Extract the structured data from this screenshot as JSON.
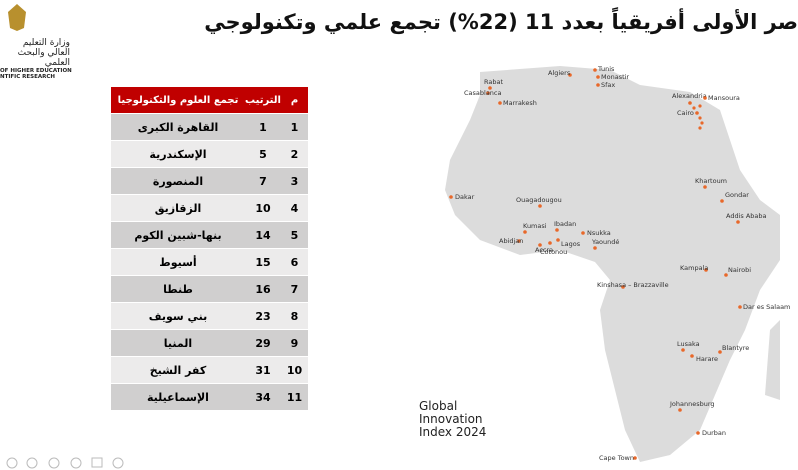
{
  "title": "صر الأولى أفريقياً بعدد 11 (22%) تجمع علمي وتكنولوجي",
  "logo": {
    "arabic": "وزارة التعليم العالي والبحث العلمي",
    "english_1": "OF HIGHER EDUCATION",
    "english_2": "NTIFIC RESEARCH"
  },
  "table": {
    "header": [
      "م",
      "الترتيب",
      "تجمع العلوم والتكنولوجيا"
    ],
    "rows": [
      [
        1,
        1,
        "القاهرة الكبرى"
      ],
      [
        2,
        5,
        "الإسكندرية"
      ],
      [
        3,
        7,
        "المنصورة"
      ],
      [
        4,
        10,
        "الزقازيق"
      ],
      [
        5,
        14,
        "بنها-شبين الكوم"
      ],
      [
        6,
        15,
        "أسيوط"
      ],
      [
        7,
        16,
        "طنطا"
      ],
      [
        8,
        23,
        "بني سويف"
      ],
      [
        9,
        29,
        "المنيا"
      ],
      [
        10,
        31,
        "كفر الشيخ"
      ],
      [
        11,
        34,
        "الإسماعيلية"
      ]
    ]
  },
  "map": {
    "source": "Global\nInnovation\nIndex 2024",
    "cities": [
      "Tunis",
      "Algiers",
      "Monastir",
      "Sfax",
      "Rabat",
      "Casablanca",
      "Marrakesh",
      "Alexandria",
      "Mansoura",
      "Cairo",
      "Khartoum",
      "Gondar",
      "Addis Ababa",
      "Dakar",
      "Ouagadougou",
      "Kumasi",
      "Abidjan",
      "Accra",
      "Ibadan",
      "Lagos",
      "Cotonou",
      "Nsukka",
      "Yaoundé",
      "Kampala",
      "Nairobi",
      "Kinshasa – Brazzaville",
      "Dar es Salaam",
      "Lusaka",
      "Harare",
      "Blantyre",
      "Johannesburg",
      "Durban",
      "Cape Town"
    ]
  }
}
